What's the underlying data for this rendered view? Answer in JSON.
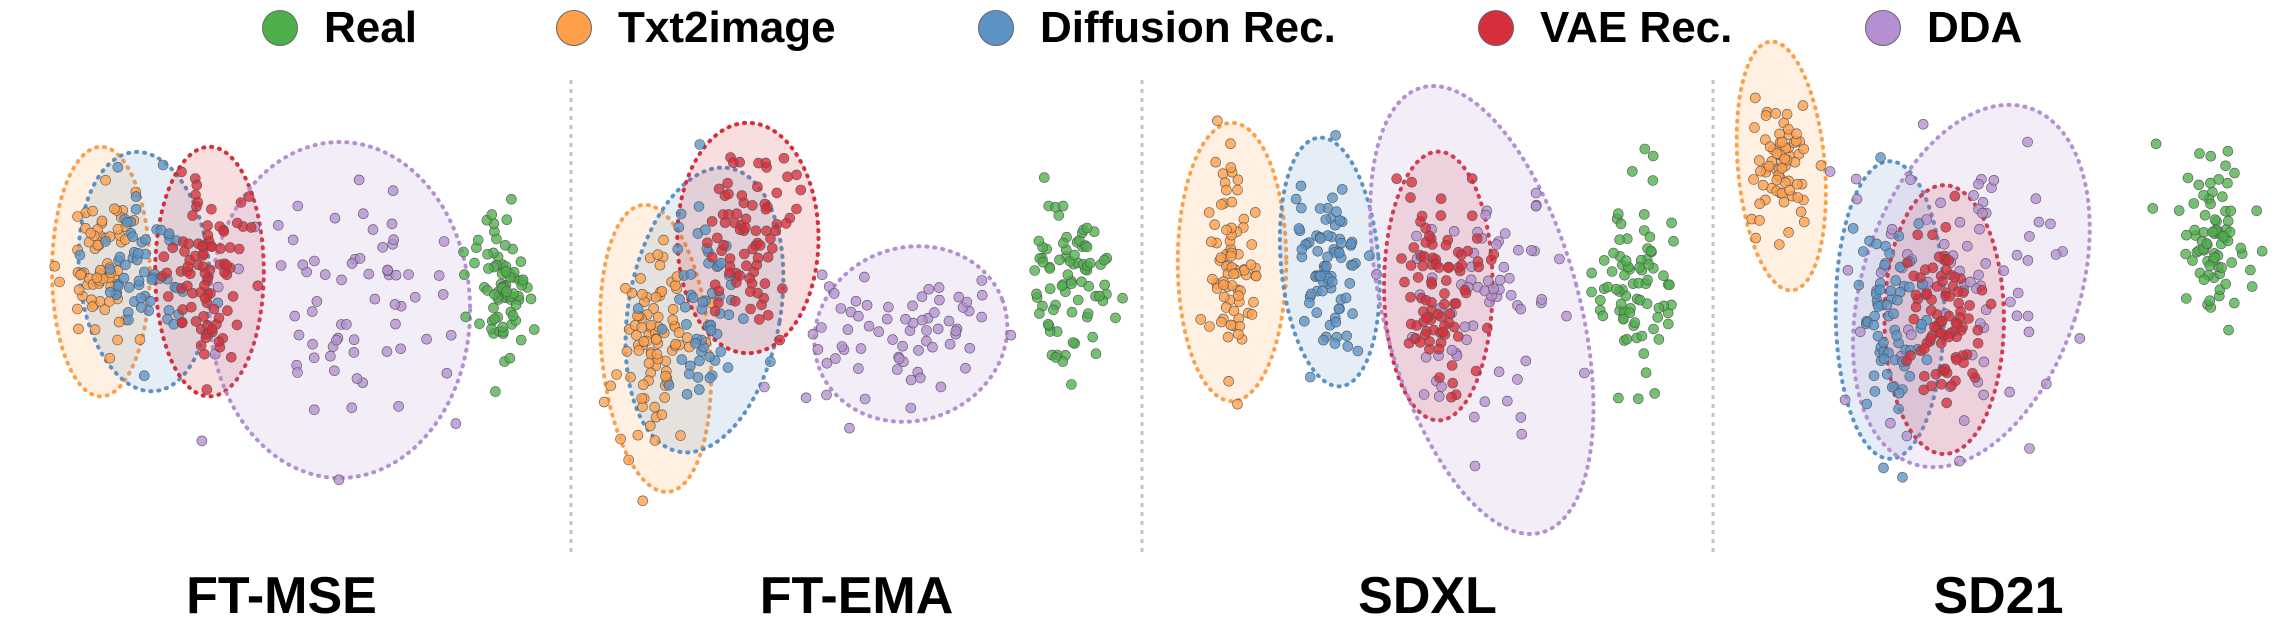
{
  "legend": [
    {
      "name": "Real",
      "color": "#4daf4a"
    },
    {
      "name": "Txt2image",
      "color": "#ff9f4a"
    },
    {
      "name": "Diffusion Rec.",
      "color": "#5b93c7"
    },
    {
      "name": "VAE Rec.",
      "color": "#d62f3b"
    },
    {
      "name": "DDA",
      "color": "#b48fd1"
    }
  ],
  "chart_data": {
    "type": "scatter",
    "legend_position": "top-center",
    "grid": false,
    "axes_visible": false,
    "panels": [
      {
        "title": "FT-MSE",
        "clusters": [
          {
            "series": "Txt2image",
            "center": [
              0.16,
              0.42
            ],
            "spread": [
              0.05,
              0.13
            ],
            "count": 70,
            "ellipse": {
              "rx": 0.09,
              "ry": 0.26,
              "angle": 0
            }
          },
          {
            "series": "Diffusion Rec.",
            "center": [
              0.24,
              0.42
            ],
            "spread": [
              0.06,
              0.12
            ],
            "count": 60,
            "ellipse": {
              "rx": 0.12,
              "ry": 0.25,
              "angle": -5
            }
          },
          {
            "series": "VAE Rec.",
            "center": [
              0.36,
              0.42
            ],
            "spread": [
              0.05,
              0.13
            ],
            "count": 90,
            "ellipse": {
              "rx": 0.1,
              "ry": 0.26,
              "angle": 0
            }
          },
          {
            "series": "DDA",
            "center": [
              0.6,
              0.5
            ],
            "spread": [
              0.15,
              0.2
            ],
            "count": 70,
            "ellipse": {
              "rx": 0.24,
              "ry": 0.35,
              "angle": 0
            }
          },
          {
            "series": "Real",
            "center": [
              0.9,
              0.45
            ],
            "spread": [
              0.04,
              0.12
            ],
            "count": 80
          }
        ]
      },
      {
        "title": "FT-EMA",
        "clusters": [
          {
            "series": "Txt2image",
            "center": [
              0.13,
              0.58
            ],
            "spread": [
              0.05,
              0.15
            ],
            "count": 90,
            "ellipse": {
              "rx": 0.1,
              "ry": 0.3,
              "angle": -5
            }
          },
          {
            "series": "Diffusion Rec.",
            "center": [
              0.22,
              0.5
            ],
            "spread": [
              0.06,
              0.15
            ],
            "count": 60,
            "ellipse": {
              "rx": 0.14,
              "ry": 0.3,
              "angle": 10
            }
          },
          {
            "series": "VAE Rec.",
            "center": [
              0.3,
              0.35
            ],
            "spread": [
              0.06,
              0.12
            ],
            "count": 80,
            "ellipse": {
              "rx": 0.13,
              "ry": 0.24,
              "angle": 0
            }
          },
          {
            "series": "DDA",
            "center": [
              0.6,
              0.55
            ],
            "spread": [
              0.15,
              0.1
            ],
            "count": 70,
            "ellipse": {
              "rx": 0.18,
              "ry": 0.18,
              "angle": -20
            }
          },
          {
            "series": "Real",
            "center": [
              0.9,
              0.45
            ],
            "spread": [
              0.05,
              0.13
            ],
            "count": 80
          }
        ]
      },
      {
        "title": "SDXL",
        "clusters": [
          {
            "series": "Txt2image",
            "center": [
              0.14,
              0.4
            ],
            "spread": [
              0.04,
              0.15
            ],
            "count": 80,
            "ellipse": {
              "rx": 0.1,
              "ry": 0.29,
              "angle": 0
            }
          },
          {
            "series": "Diffusion Rec.",
            "center": [
              0.32,
              0.4
            ],
            "spread": [
              0.04,
              0.14
            ],
            "count": 80,
            "ellipse": {
              "rx": 0.09,
              "ry": 0.26,
              "angle": -5
            }
          },
          {
            "series": "VAE Rec.",
            "center": [
              0.52,
              0.45
            ],
            "spread": [
              0.05,
              0.14
            ],
            "count": 90,
            "ellipse": {
              "rx": 0.1,
              "ry": 0.28,
              "angle": 0
            }
          },
          {
            "series": "DDA",
            "center": [
              0.6,
              0.5
            ],
            "spread": [
              0.12,
              0.18
            ],
            "count": 70,
            "ellipse": {
              "rx": 0.18,
              "ry": 0.48,
              "angle": -15
            }
          },
          {
            "series": "Real",
            "center": [
              0.88,
              0.45
            ],
            "spread": [
              0.05,
              0.15
            ],
            "count": 80
          }
        ]
      },
      {
        "title": "SD21",
        "clusters": [
          {
            "series": "Txt2image",
            "center": [
              0.1,
              0.2
            ],
            "spread": [
              0.04,
              0.1
            ],
            "count": 70,
            "ellipse": {
              "rx": 0.08,
              "ry": 0.26,
              "angle": -5
            }
          },
          {
            "series": "Diffusion Rec.",
            "center": [
              0.3,
              0.5
            ],
            "spread": [
              0.05,
              0.15
            ],
            "count": 70,
            "ellipse": {
              "rx": 0.1,
              "ry": 0.31,
              "angle": 0
            }
          },
          {
            "series": "VAE Rec.",
            "center": [
              0.4,
              0.52
            ],
            "spread": [
              0.05,
              0.12
            ],
            "count": 90,
            "ellipse": {
              "rx": 0.11,
              "ry": 0.28,
              "angle": 0
            }
          },
          {
            "series": "DDA",
            "center": [
              0.45,
              0.45
            ],
            "spread": [
              0.15,
              0.2
            ],
            "count": 80,
            "ellipse": {
              "rx": 0.2,
              "ry": 0.39,
              "angle": 18
            }
          },
          {
            "series": "Real",
            "center": [
              0.9,
              0.35
            ],
            "spread": [
              0.04,
              0.1
            ],
            "count": 80
          }
        ]
      }
    ]
  }
}
